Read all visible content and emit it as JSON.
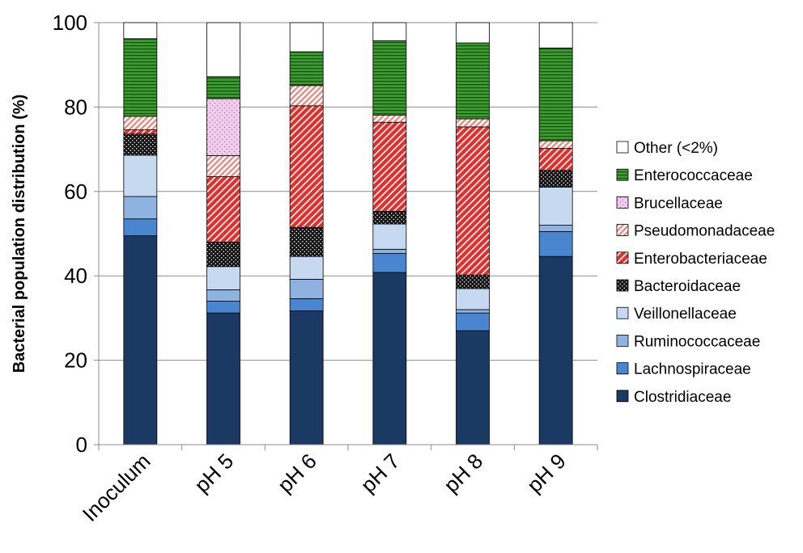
{
  "chart_data": {
    "type": "bar",
    "stacked": true,
    "categories": [
      "Inoculum",
      "pH 5",
      "pH 6",
      "pH 7",
      "pH 8",
      "pH 9"
    ],
    "ylabel": "Bacterial population distribution (%)",
    "xlabel": "",
    "title": "",
    "ylim": [
      0,
      100
    ],
    "yticks": [
      0,
      20,
      40,
      60,
      80,
      100
    ],
    "grid": true,
    "legend_position": "right",
    "series": [
      {
        "name": "Clostridiaceae",
        "color": "#1a3a63",
        "pattern": "solid",
        "values": [
          49.5,
          31.2,
          31.7,
          40.8,
          27.0,
          44.6
        ]
      },
      {
        "name": "Lachnospiraceae",
        "color": "#4a86d0",
        "pattern": "solid",
        "values": [
          4.0,
          2.8,
          2.9,
          4.5,
          4.2,
          5.9
        ]
      },
      {
        "name": "Ruminococcaceae",
        "color": "#8fb3e0",
        "pattern": "solid",
        "values": [
          5.3,
          2.7,
          4.6,
          1.0,
          0.8,
          1.5
        ]
      },
      {
        "name": "Veillonellaceae",
        "color": "#c6d9f1",
        "pattern": "solid",
        "values": [
          9.8,
          5.5,
          5.4,
          6.0,
          5.0,
          9.0
        ]
      },
      {
        "name": "Bacteroidaceae",
        "color": "#111111",
        "pattern": "dots",
        "values": [
          5.0,
          5.8,
          6.9,
          3.0,
          3.2,
          4.0
        ]
      },
      {
        "name": "Enterobacteriaceae",
        "color": "#e0302e",
        "pattern": "diagonal",
        "values": [
          1.0,
          15.5,
          28.8,
          21.1,
          35.1,
          5.2
        ]
      },
      {
        "name": "Pseudomonadaceae",
        "color": "#f2b6ab",
        "pattern": "diagonal-light",
        "values": [
          3.2,
          5.0,
          4.8,
          1.7,
          1.9,
          1.8
        ]
      },
      {
        "name": "Brucellaceae",
        "color": "#e8b7e3",
        "pattern": "pink-dots",
        "values": [
          0,
          13.5,
          0,
          0,
          0,
          0
        ]
      },
      {
        "name": "Enterococcaceae",
        "color": "#3a9b2e",
        "pattern": "horizontal",
        "values": [
          18.4,
          5.2,
          8.0,
          17.6,
          18.0,
          22.0
        ]
      },
      {
        "name": "Other (<2%)",
        "color": "#ffffff",
        "pattern": "solid",
        "values": [
          3.8,
          12.8,
          6.9,
          4.3,
          4.8,
          6.0
        ]
      }
    ],
    "legend_order": [
      "Other (<2%)",
      "Enterococcaceae",
      "Brucellaceae",
      "Pseudomonadaceae",
      "Enterobacteriaceae",
      "Bacteroidaceae",
      "Veillonellaceae",
      "Ruminococcaceae",
      "Lachnospiraceae",
      "Clostridiaceae"
    ]
  }
}
